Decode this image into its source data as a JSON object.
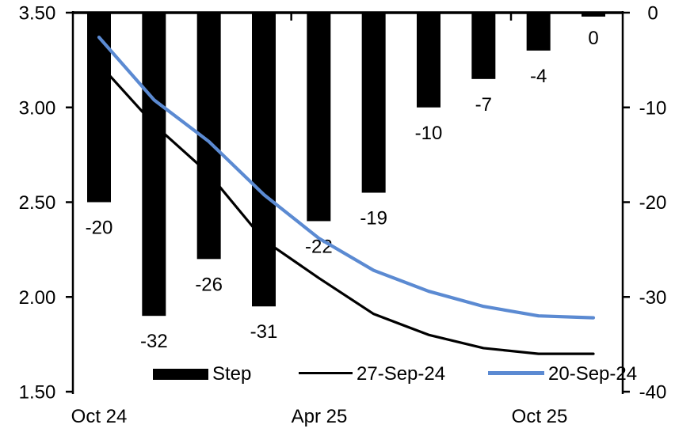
{
  "chart_data": {
    "type": "bar+line",
    "subtype": "combo chart with dual y-axes, vertical bars hanging from zero at top plus two line series",
    "n_categories": 10,
    "series": [
      {
        "name": "Step",
        "type": "bar",
        "axis": "right",
        "color": "#000000",
        "values": [
          -20,
          -32,
          -26,
          -31,
          -22,
          -19,
          -10,
          -7,
          -4,
          0
        ],
        "data_labels": [
          "-20",
          "-32",
          "-26",
          "-31",
          "-22",
          "-19",
          "-10",
          "-7",
          "-4",
          "0"
        ]
      },
      {
        "name": "27-Sep-24",
        "type": "line",
        "axis": "left",
        "color": "#000000",
        "values": [
          3.23,
          2.91,
          2.65,
          2.3,
          2.1,
          1.91,
          1.8,
          1.73,
          1.7,
          1.7
        ]
      },
      {
        "name": "20-Sep-24",
        "type": "line",
        "axis": "left",
        "color": "#5B8AD2",
        "values": [
          3.37,
          3.04,
          2.82,
          2.54,
          2.31,
          2.14,
          2.03,
          1.95,
          1.9,
          1.89
        ]
      }
    ],
    "left_axis": {
      "max": 3.5,
      "min": 1.5,
      "tick_labels": [
        "3.50",
        "3.00",
        "2.50",
        "2.00",
        "1.50"
      ]
    },
    "right_axis": {
      "max": 0,
      "min": -40,
      "tick_labels": [
        "0",
        "-10",
        "-20",
        "-30",
        "-40"
      ]
    },
    "x_axis": {
      "tick_labels": [
        {
          "text": "Oct 24",
          "category": 0
        },
        {
          "text": "Apr 25",
          "category": 4
        },
        {
          "text": "Oct 25",
          "category": 8
        }
      ],
      "group_boundary_ticks_between_categories": [
        [
          3,
          4
        ],
        [
          7,
          8
        ]
      ]
    },
    "legend": {
      "position": "bottom",
      "entries": [
        {
          "label": "Step",
          "swatch": "bar",
          "color": "#000000"
        },
        {
          "label": "27-Sep-24",
          "swatch": "line",
          "color": "#000000"
        },
        {
          "label": "20-Sep-24",
          "swatch": "line",
          "color": "#5B8AD2"
        }
      ]
    },
    "grid": "off",
    "background": "#FFFFFF"
  }
}
